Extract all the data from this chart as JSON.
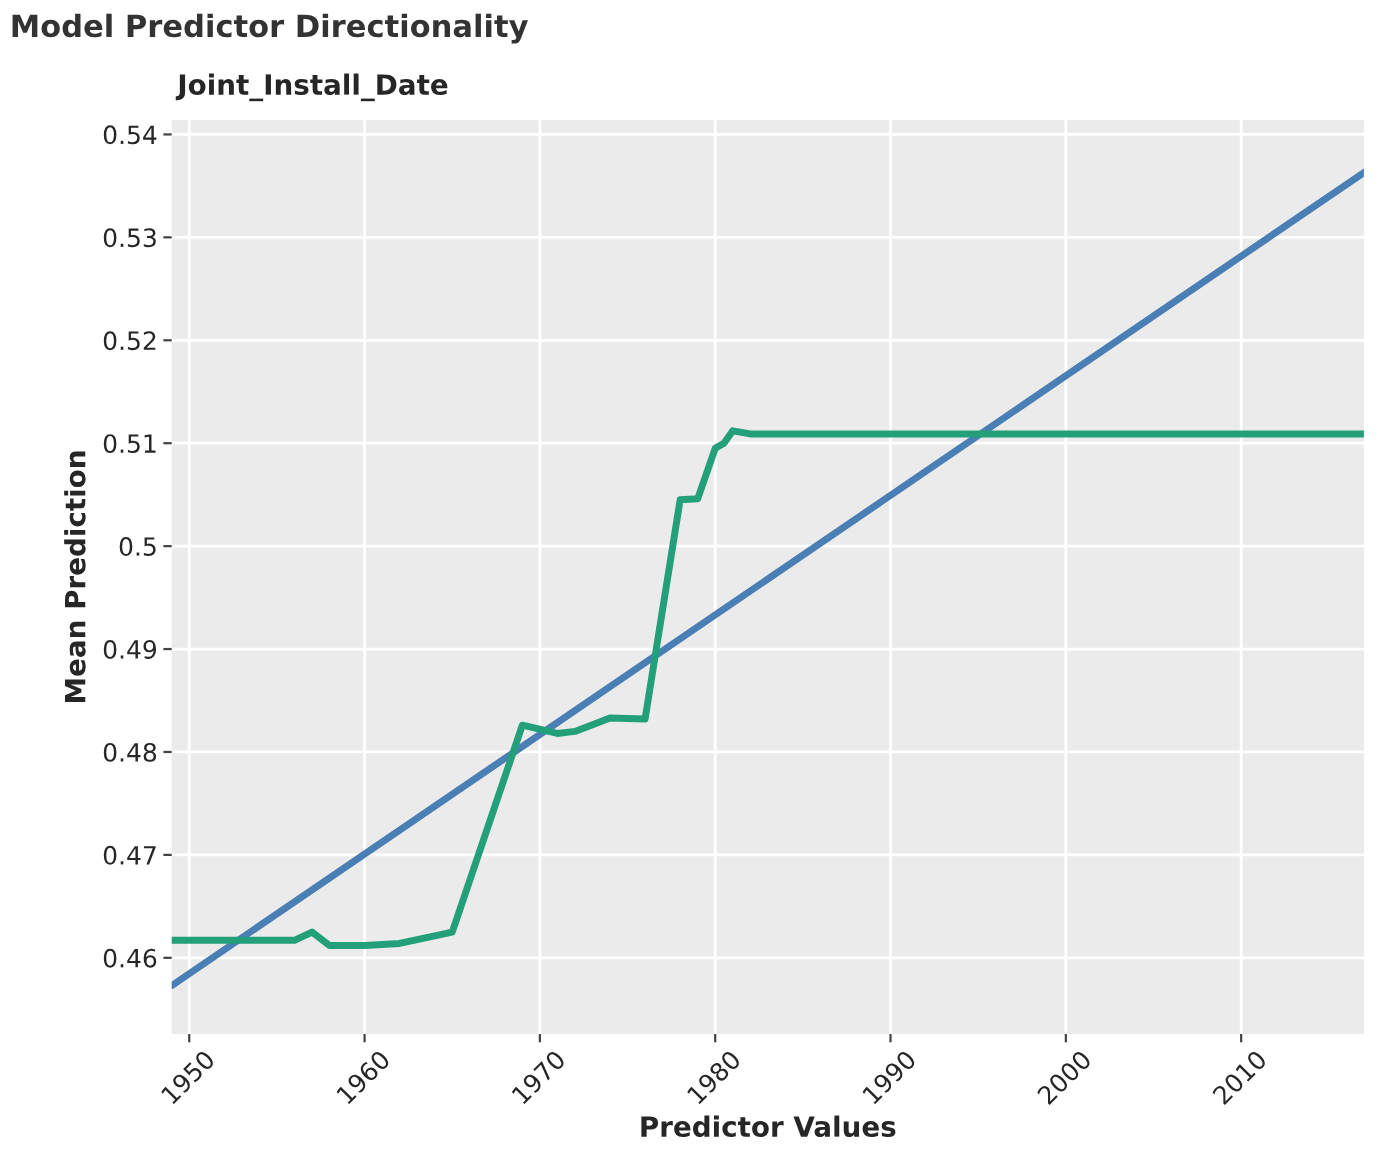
{
  "chart_data": {
    "type": "line",
    "title": "Model Predictor Directionality",
    "subtitle": "Joint_Install_Date",
    "xlabel": "Predictor Values",
    "ylabel": "Mean Prediction",
    "series": [
      {
        "color": "#4a7fb5",
        "x": [
          1949,
          2017
        ],
        "values": [
          0.4573,
          0.5363
        ]
      },
      {
        "color": "#23a07a",
        "x": [
          1949,
          1956,
          1957,
          1958,
          1960,
          1962,
          1965,
          1969,
          1971,
          1972,
          1974,
          1976,
          1978,
          1979,
          1980,
          1980.5,
          1981,
          1982,
          2017
        ],
        "values": [
          0.4617,
          0.4617,
          0.4625,
          0.4612,
          0.4612,
          0.4614,
          0.4625,
          0.4826,
          0.4818,
          0.482,
          0.4833,
          0.4832,
          0.5045,
          0.5046,
          0.5095,
          0.51,
          0.5112,
          0.5109,
          0.5109
        ]
      }
    ],
    "xlim": [
      1949,
      2017
    ],
    "ylim": [
      0.4526,
      0.5414
    ],
    "xticks": [
      1950,
      1960,
      1970,
      1980,
      1990,
      2000,
      2010
    ],
    "yticks": [
      0.46,
      0.47,
      0.48,
      0.49,
      0.5,
      0.51,
      0.52,
      0.53,
      0.54
    ],
    "grid": true
  }
}
